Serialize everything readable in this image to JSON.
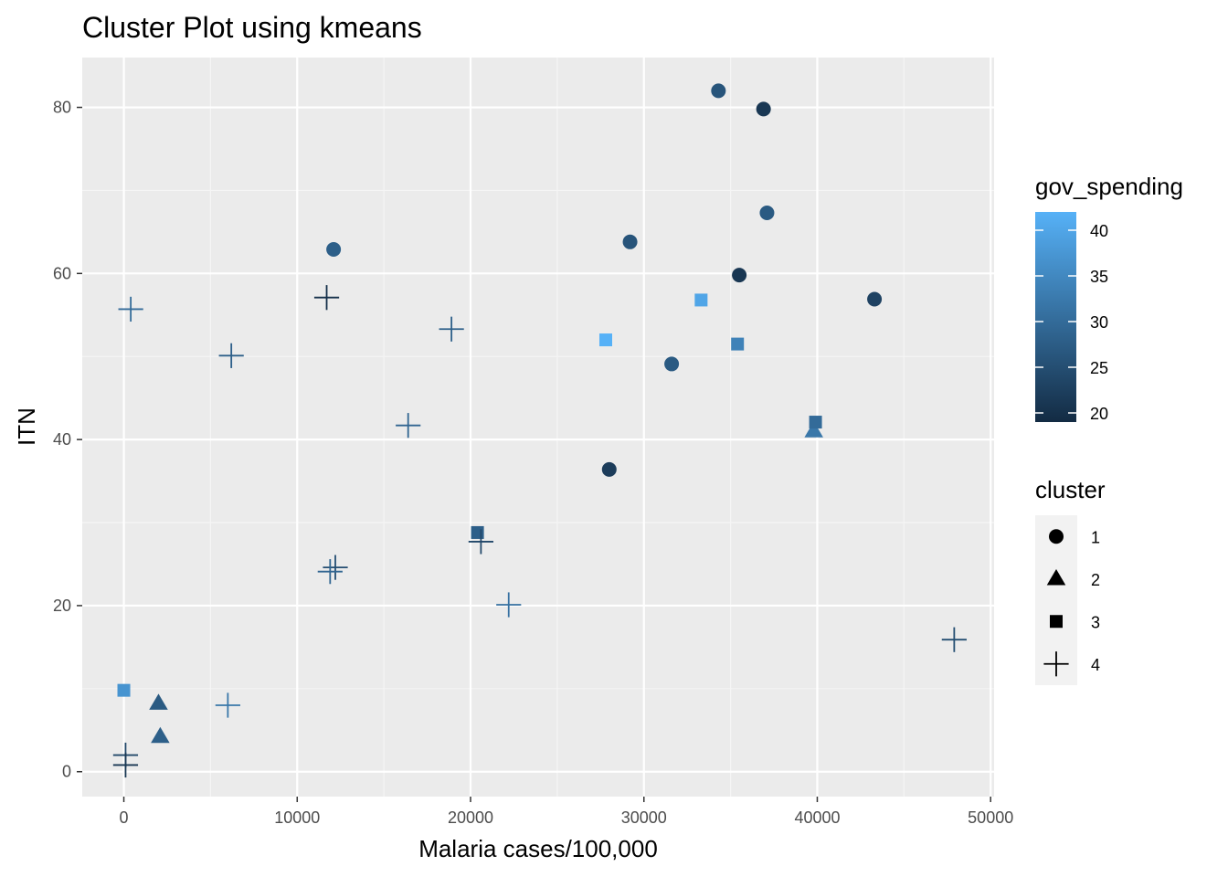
{
  "chart_data": {
    "type": "scatter",
    "title": "Cluster Plot using kmeans",
    "xlabel": "Malaria cases/100,000",
    "ylabel": "ITN",
    "xlim": [
      -2400,
      50200
    ],
    "ylim": [
      -3,
      86
    ],
    "x_ticks": [
      0,
      10000,
      20000,
      30000,
      40000,
      50000
    ],
    "x_tick_labels": [
      "0",
      "10000",
      "20000",
      "30000",
      "40000",
      "50000"
    ],
    "y_ticks": [
      0,
      20,
      40,
      60,
      80
    ],
    "y_tick_labels": [
      "0",
      "20",
      "40",
      "60",
      "80"
    ],
    "grid": true,
    "background": "#ebebeb",
    "legend_position": "right",
    "color_legend": {
      "title": "gov_spending",
      "min": 19,
      "max": 42,
      "breaks": [
        20,
        25,
        30,
        35,
        40
      ],
      "break_labels": [
        "20",
        "25",
        "30",
        "35",
        "40"
      ],
      "low_color": "#132b43",
      "high_color": "#56b1f7"
    },
    "shape_legend": {
      "title": "cluster",
      "entries": [
        {
          "label": "1",
          "shape": "circle"
        },
        {
          "label": "2",
          "shape": "triangle"
        },
        {
          "label": "3",
          "shape": "square"
        },
        {
          "label": "4",
          "shape": "plus"
        }
      ]
    },
    "points": [
      {
        "x": 34300,
        "y": 82,
        "cluster": "1",
        "gov_spending": 26
      },
      {
        "x": 36900,
        "y": 79.8,
        "cluster": "1",
        "gov_spending": 21
      },
      {
        "x": 37100,
        "y": 67.3,
        "cluster": "1",
        "gov_spending": 27
      },
      {
        "x": 12100,
        "y": 62.9,
        "cluster": "1",
        "gov_spending": 28
      },
      {
        "x": 29200,
        "y": 63.8,
        "cluster": "1",
        "gov_spending": 26
      },
      {
        "x": 35500,
        "y": 59.8,
        "cluster": "1",
        "gov_spending": 21
      },
      {
        "x": 43300,
        "y": 56.9,
        "cluster": "1",
        "gov_spending": 23
      },
      {
        "x": 31600,
        "y": 49.1,
        "cluster": "1",
        "gov_spending": 27
      },
      {
        "x": 28000,
        "y": 36.4,
        "cluster": "1",
        "gov_spending": 22
      },
      {
        "x": 39800,
        "y": 41,
        "cluster": "2",
        "gov_spending": 32
      },
      {
        "x": 2000,
        "y": 8.2,
        "cluster": "2",
        "gov_spending": 27
      },
      {
        "x": 2100,
        "y": 4.2,
        "cluster": "2",
        "gov_spending": 28
      },
      {
        "x": 33300,
        "y": 56.8,
        "cluster": "3",
        "gov_spending": 40
      },
      {
        "x": 27800,
        "y": 52,
        "cluster": "3",
        "gov_spending": 42
      },
      {
        "x": 35400,
        "y": 51.5,
        "cluster": "3",
        "gov_spending": 34
      },
      {
        "x": 39900,
        "y": 42.1,
        "cluster": "3",
        "gov_spending": 30
      },
      {
        "x": 20400,
        "y": 28.8,
        "cluster": "3",
        "gov_spending": 28
      },
      {
        "x": 0,
        "y": 9.8,
        "cluster": "3",
        "gov_spending": 37
      },
      {
        "x": 400,
        "y": 55.7,
        "cluster": "4",
        "gov_spending": 30
      },
      {
        "x": 11700,
        "y": 57.1,
        "cluster": "4",
        "gov_spending": 20
      },
      {
        "x": 18900,
        "y": 53.3,
        "cluster": "4",
        "gov_spending": 28
      },
      {
        "x": 6200,
        "y": 50.1,
        "cluster": "4",
        "gov_spending": 28
      },
      {
        "x": 16400,
        "y": 41.7,
        "cluster": "4",
        "gov_spending": 29
      },
      {
        "x": 20600,
        "y": 27.7,
        "cluster": "4",
        "gov_spending": 24
      },
      {
        "x": 12200,
        "y": 24.6,
        "cluster": "4",
        "gov_spending": 25
      },
      {
        "x": 11900,
        "y": 24.1,
        "cluster": "4",
        "gov_spending": 29
      },
      {
        "x": 22200,
        "y": 20.1,
        "cluster": "4",
        "gov_spending": 31
      },
      {
        "x": 47900,
        "y": 15.9,
        "cluster": "4",
        "gov_spending": 25
      },
      {
        "x": 6000,
        "y": 8,
        "cluster": "4",
        "gov_spending": 32
      },
      {
        "x": 100,
        "y": 2,
        "cluster": "4",
        "gov_spending": 24
      },
      {
        "x": 100,
        "y": 0.8,
        "cluster": "4",
        "gov_spending": 21
      }
    ]
  }
}
